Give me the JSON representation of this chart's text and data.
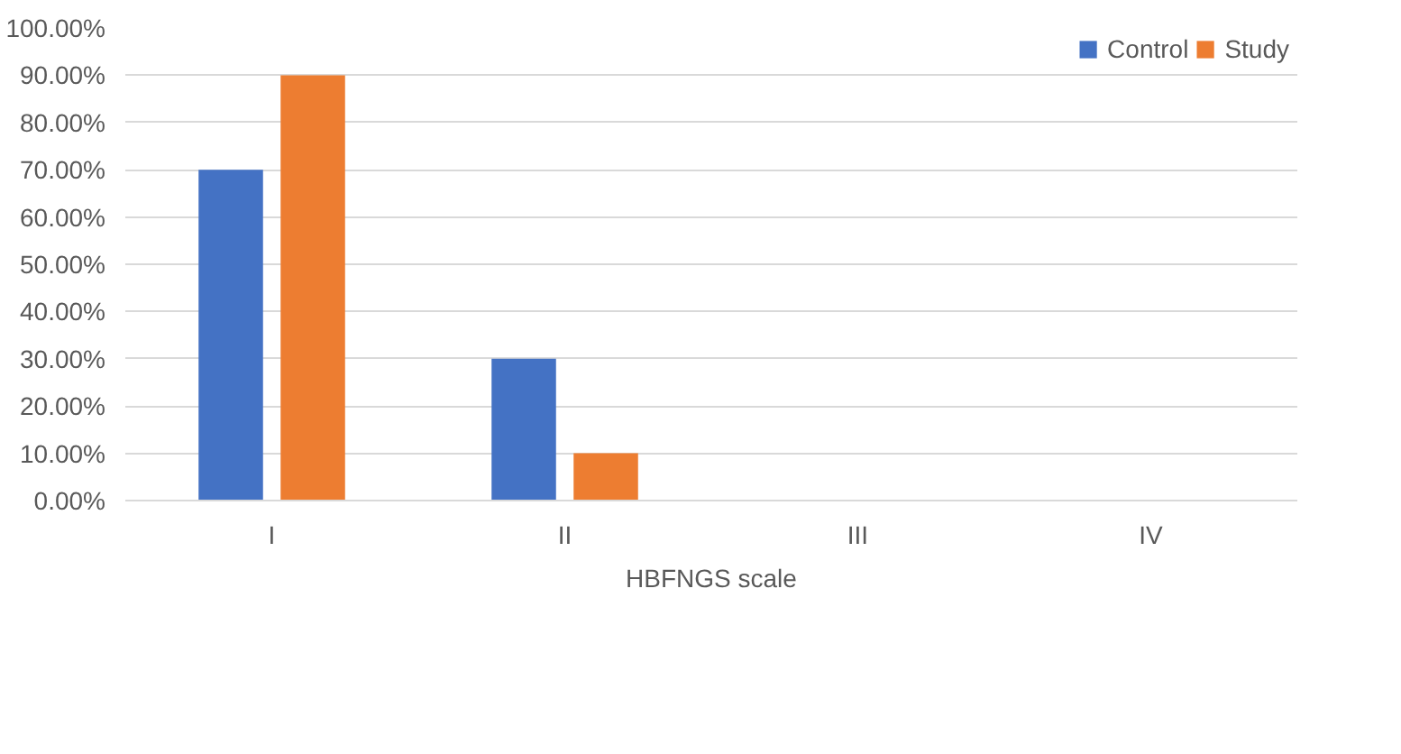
{
  "chart_data": {
    "type": "bar",
    "xlabel": "HBFNGS scale",
    "categories": [
      "I",
      "II",
      "III",
      "IV"
    ],
    "series": [
      {
        "name": "Control",
        "color": "#4472c4",
        "values": [
          70,
          30,
          0,
          0
        ]
      },
      {
        "name": "Study",
        "color": "#ed7d31",
        "values": [
          90,
          10,
          0,
          0
        ]
      }
    ],
    "ylim": [
      0,
      100
    ],
    "yticks": [
      {
        "value": 0,
        "label": "0.00%"
      },
      {
        "value": 10,
        "label": "10.00%"
      },
      {
        "value": 20,
        "label": "20.00%"
      },
      {
        "value": 30,
        "label": "30.00%"
      },
      {
        "value": 40,
        "label": "40.00%"
      },
      {
        "value": 50,
        "label": "50.00%"
      },
      {
        "value": 60,
        "label": "60.00%"
      },
      {
        "value": 70,
        "label": "70.00%"
      },
      {
        "value": 80,
        "label": "80.00%"
      },
      {
        "value": 90,
        "label": "90.00%"
      },
      {
        "value": 100,
        "label": "100.00%"
      }
    ],
    "grid": "y",
    "legend": "top right"
  }
}
